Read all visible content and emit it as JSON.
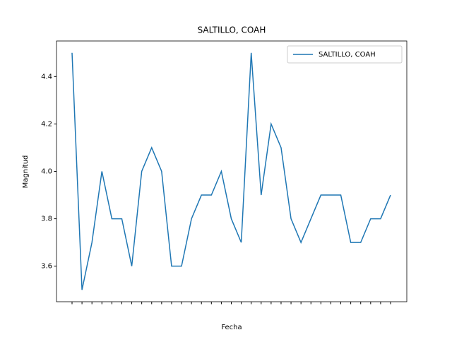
{
  "chart_data": {
    "type": "line",
    "title": "SALTILLO, COAH",
    "xlabel": "Fecha",
    "ylabel": "Magnitud",
    "categories": [
      null,
      null,
      null,
      null,
      null,
      null,
      null,
      null,
      null,
      null,
      null,
      null,
      null,
      null,
      null,
      null,
      null,
      null,
      null,
      null,
      null,
      null,
      null,
      null,
      null,
      null,
      null,
      null,
      null,
      null,
      null,
      null,
      null
    ],
    "series": [
      {
        "name": "SALTILLO, COAH",
        "color": "#1f77b4",
        "values": [
          4.5,
          3.5,
          3.7,
          4.0,
          3.8,
          3.8,
          3.6,
          4.0,
          4.1,
          4.0,
          3.6,
          3.6,
          3.8,
          3.9,
          3.9,
          4.0,
          3.8,
          3.7,
          4.5,
          3.9,
          4.2,
          4.1,
          3.8,
          3.7,
          3.8,
          3.9,
          3.9,
          3.9,
          3.7,
          3.7,
          3.8,
          3.8,
          3.9
        ]
      }
    ],
    "ylim": [
      3.45,
      4.55
    ],
    "yticks": [
      3.6,
      3.8,
      {
        "value": 4.0,
        "label": "4.0"
      },
      4.2,
      4.4
    ],
    "grid": false,
    "legend": "upper right"
  }
}
